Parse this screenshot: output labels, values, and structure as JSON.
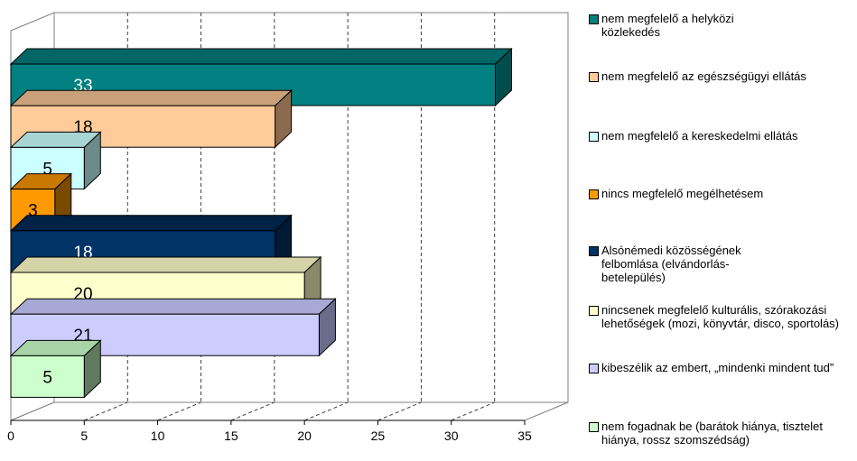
{
  "chart_data": {
    "type": "bar",
    "orientation": "horizontal",
    "style": "3d",
    "xlim": [
      0,
      35
    ],
    "x_ticks": [
      "0",
      "5",
      "10",
      "15",
      "20",
      "25",
      "30",
      "35"
    ],
    "grid": "vertical dashed",
    "legend_position": "right",
    "series": [
      {
        "name": "nem megfelelő a helyközi közlekedés",
        "value": 33,
        "color": "#008080",
        "side": "#004d4d",
        "top": "#006666",
        "label_color": "#ffffff"
      },
      {
        "name": "nem megfelelő az egészségügyi ellátás",
        "value": 18,
        "color": "#ffcc99",
        "side": "#8c6a4f",
        "top": "#c9a07a",
        "label_color": "#000000"
      },
      {
        "name": "nem megfelelő a kereskedelmi ellátás",
        "value": 5,
        "color": "#ccffff",
        "side": "#6b8a8a",
        "top": "#a8d4d4",
        "label_color": "#000000"
      },
      {
        "name": "nincs megfelelő megélhetésem",
        "value": 3,
        "color": "#ff9900",
        "side": "#7a4a00",
        "top": "#c97800",
        "label_color": "#000000"
      },
      {
        "name": "Alsónémedi közösségének felbomlása (elvándorlás-betelepülés)",
        "value": 18,
        "color": "#003366",
        "side": "#001a33",
        "top": "#002244",
        "label_color": "#ffffff"
      },
      {
        "name": "nincsenek megfelelő kulturális, szórakozási lehetőségek (mozi, könyvtár, disco, sportolás)",
        "value": 20,
        "color": "#ffffcc",
        "side": "#8a8a6b",
        "top": "#d4d4a8",
        "label_color": "#000000"
      },
      {
        "name": "kibeszélik az embert, „mindenki mindent tud”",
        "value": 21,
        "color": "#ccccff",
        "side": "#6b6b8a",
        "top": "#a8a8d4",
        "label_color": "#000000"
      },
      {
        "name": "nem fogadnak be (barátok hiánya, tisztelet hiánya, rossz szomszédság)",
        "value": 5,
        "color": "#ccffcc",
        "side": "#5f7a5f",
        "top": "#a8d4a8",
        "label_color": "#000000"
      }
    ]
  },
  "legend": {
    "items": [
      {
        "label": "nem megfelelő a helyközi közlekedés",
        "color": "#008080"
      },
      {
        "label": "nem megfelelő az egészségügyi ellátás",
        "color": "#ffcc99"
      },
      {
        "label": "nem megfelelő a kereskedelmi ellátás",
        "color": "#ccffff"
      },
      {
        "label": "nincs megfelelő megélhetésem",
        "color": "#ff9900"
      },
      {
        "label": "Alsónémedi közösségének felbomlása (elvándorlás-betelepülés)",
        "color": "#003366"
      },
      {
        "label": "nincsenek megfelelő kulturális, szórakozási lehetőségek (mozi, könyvtár, disco, sportolás)",
        "color": "#ffffcc"
      },
      {
        "label": "kibeszélik az embert, „mindenki mindent tud”",
        "color": "#ccccff"
      },
      {
        "label": "nem fogadnak be (barátok hiánya, tisztelet hiánya, rossz szomszédság)",
        "color": "#ccffcc"
      }
    ]
  }
}
